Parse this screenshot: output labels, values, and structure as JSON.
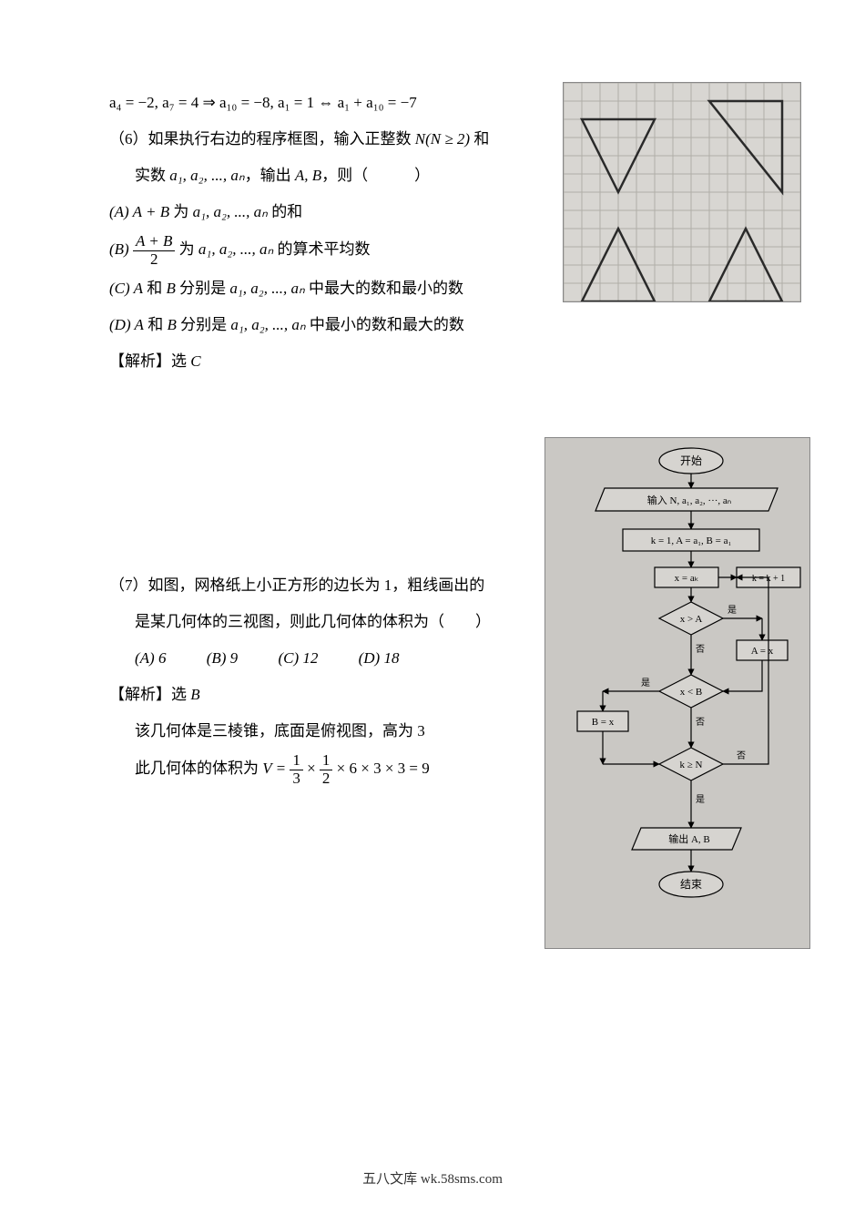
{
  "footer": "五八文库 wk.58sms.com",
  "eq_top": "a₄ = −2, a₇ = 4 ⇒ a₁₀ = −8, a₁ = 1 ⇔ a₁ + a₁₀ = −7",
  "q6": {
    "stem1_pre": "（6）如果执行右边的程序框图，输入正整数 ",
    "stem1_math": "N(N ≥ 2)",
    "stem1_post": " 和",
    "stem2_pre": "实数 ",
    "stem2_seq": "a₁, a₂, ..., aₙ",
    "stem2_mid": "，输出 ",
    "stem2_ab": "A, B",
    "stem2_post": "，则（　　　）",
    "optA_pre": "(A) ",
    "optA_math": "A + B",
    "optA_mid": " 为 ",
    "optA_seq": "a₁, a₂, ..., aₙ",
    "optA_post": " 的和",
    "optB_pre": "(B) ",
    "optB_frac_num": "A + B",
    "optB_frac_den": "2",
    "optB_mid": " 为 ",
    "optB_seq": "a₁, a₂, ..., aₙ",
    "optB_post": " 的算术平均数",
    "optC_pre": "(C) ",
    "optC_A": "A",
    "optC_and": " 和 ",
    "optC_B": "B",
    "optC_mid": " 分别是 ",
    "optC_seq": "a₁, a₂, ..., aₙ",
    "optC_post": " 中最大的数和最小的数",
    "optD_pre": "(D) ",
    "optD_A": "A",
    "optD_and": " 和 ",
    "optD_B": "B",
    "optD_mid": " 分别是 ",
    "optD_seq": "a₁, a₂, ..., aₙ",
    "optD_post": " 中最小的数和最大的数",
    "answer_pre": "【解析】选 ",
    "answer": "C"
  },
  "q7": {
    "stem1": "（7）如图，网格纸上小正方形的边长为 1，粗线画出的",
    "stem2": "是某几何体的三视图，则此几何体的体积为（　　）",
    "optA": "(A) 6",
    "optB": "(B)  9",
    "optC": "(C) 12",
    "optD": "(D) 18",
    "answer_pre": "【解析】选 ",
    "answer": "B",
    "expl1": "该几何体是三棱锥，底面是俯视图，高为 3",
    "expl2_pre": "此几何体的体积为 ",
    "expl2_V": "V = ",
    "expl2_f1n": "1",
    "expl2_f1d": "3",
    "expl2_x1": " × ",
    "expl2_f2n": "1",
    "expl2_f2d": "2",
    "expl2_rest": " × 6 × 3 × 3 = 9"
  },
  "flowchart": {
    "start": "开始",
    "input": "输入 N, a₁, a₂, ···, aₙ",
    "init": "k = 1, A = a₁, B = a₁",
    "assign_x": "x = aₖ",
    "inc_k": "k = k + 1",
    "cond1": "x > A",
    "setA": "A = x",
    "cond2": "x < B",
    "setB": "B = x",
    "cond3": "k ≥ N",
    "output": "输出 A, B",
    "end": "结束",
    "yes": "是",
    "no": "否"
  },
  "grid": {
    "cols": 13,
    "rows": 12,
    "cell": 20,
    "triangles": [
      {
        "p": [
          [
            1,
            2
          ],
          [
            3,
            6
          ],
          [
            5,
            2
          ]
        ],
        "bold": true
      },
      {
        "p": [
          [
            8,
            1
          ],
          [
            12,
            1
          ],
          [
            12,
            6
          ]
        ],
        "bold": true
      },
      {
        "p": [
          [
            1,
            12
          ],
          [
            3,
            8
          ],
          [
            5,
            12
          ]
        ],
        "bold": true
      },
      {
        "p": [
          [
            8,
            12
          ],
          [
            10,
            8
          ],
          [
            12,
            12
          ]
        ],
        "bold": true
      }
    ],
    "line_color": "#b0aea8",
    "bold_color": "#2a2a2a"
  }
}
